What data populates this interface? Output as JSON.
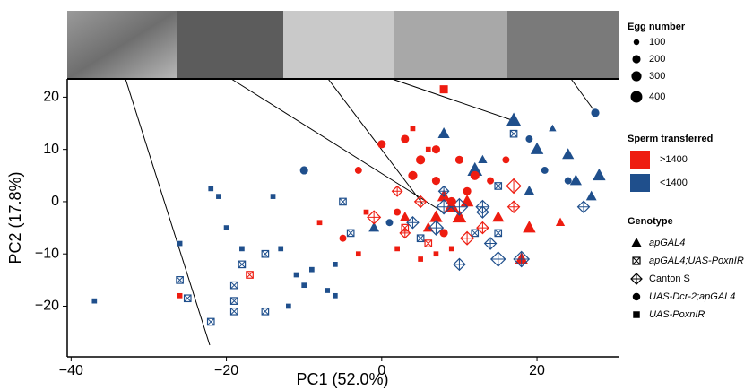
{
  "chart_data": {
    "type": "scatter",
    "xlabel": "PC1 (52.0%)",
    "ylabel": "PC2 (17.8%)",
    "xlim": [
      -40.5,
      30.5
    ],
    "ylim": [
      -29.7,
      23.5
    ],
    "xticks": [
      {
        "value": -40,
        "label": "−40"
      },
      {
        "value": -20,
        "label": "−20"
      },
      0,
      20
    ],
    "yticks": [
      {
        "value": -20,
        "label": "−20"
      },
      {
        "value": -10,
        "label": "−10"
      },
      0,
      10,
      20
    ],
    "size_legend": {
      "title": "Egg number",
      "values": [
        100,
        200,
        300,
        400
      ]
    },
    "color_legend": {
      "title": "Sperm transferred",
      "groups": [
        {
          "label": ">1400",
          "color": "#ee1c10"
        },
        {
          "label": "<1400",
          "color": "#1f4f8c"
        }
      ]
    },
    "genotype_legend_title": "Genotype",
    "series": [
      {
        "name": "apGAL4",
        "shape": "triangle",
        "x": [
          17,
          8,
          20,
          24,
          12,
          28,
          25,
          27,
          19,
          8,
          9,
          7,
          11,
          10,
          19,
          23,
          15,
          18,
          6,
          -1,
          3,
          22,
          13
        ],
        "y": [
          15.5,
          13,
          10,
          9,
          6,
          5,
          4,
          1,
          2,
          1,
          -1,
          -3,
          0,
          -3,
          -5,
          -4,
          -3,
          -11,
          -5,
          -5,
          -3,
          14,
          8
        ],
        "eggs": [
          400,
          250,
          300,
          250,
          400,
          300,
          250,
          200,
          200,
          300,
          400,
          300,
          300,
          350,
          300,
          150,
          250,
          300,
          200,
          200,
          200,
          100,
          150
        ],
        "sperm_group": [
          1,
          1,
          1,
          1,
          1,
          1,
          1,
          1,
          1,
          0,
          0,
          0,
          0,
          0,
          0,
          0,
          0,
          0,
          0,
          1,
          0,
          1,
          1
        ]
      },
      {
        "name": "apGAL4;UAS-PoxnIR",
        "shape": "square-x",
        "x": [
          -22,
          -26,
          -25,
          -19,
          -19,
          -19,
          -15,
          -15,
          -18,
          -17,
          -5,
          -4,
          5,
          12,
          3,
          6,
          15,
          15,
          17
        ],
        "y": [
          -23,
          -15,
          -18.5,
          -16,
          -19,
          -21,
          -21,
          -10,
          -12,
          -14,
          0,
          -6,
          -7,
          -6,
          -5,
          -8,
          -6,
          3,
          13
        ],
        "eggs": [
          150,
          150,
          150,
          150,
          150,
          150,
          150,
          150,
          150,
          150,
          150,
          150,
          150,
          150,
          150,
          150,
          150,
          150,
          150
        ],
        "sperm_group": [
          1,
          1,
          1,
          1,
          1,
          1,
          1,
          1,
          1,
          0,
          1,
          1,
          1,
          1,
          0,
          0,
          1,
          1,
          1
        ]
      },
      {
        "name": "Canton S",
        "shape": "diamond-cross",
        "x": [
          -1,
          7,
          8,
          10,
          4,
          18,
          15,
          10,
          14,
          13,
          17,
          17,
          13,
          26,
          5,
          8,
          13,
          2,
          3,
          11
        ],
        "y": [
          -3,
          -5,
          -1,
          -1,
          -4,
          -11,
          -11,
          -12,
          -8,
          -5,
          3,
          -1,
          -1,
          -1,
          0,
          2,
          -2,
          2,
          -6,
          -7
        ],
        "eggs": [
          250,
          300,
          300,
          400,
          200,
          350,
          300,
          200,
          200,
          200,
          300,
          200,
          250,
          200,
          200,
          150,
          200,
          150,
          150,
          250
        ],
        "sperm_group": [
          0,
          1,
          1,
          1,
          1,
          1,
          1,
          1,
          1,
          0,
          0,
          0,
          1,
          1,
          0,
          1,
          1,
          0,
          0,
          0
        ]
      },
      {
        "name": "UAS-Dcr-2;apGAL4",
        "shape": "circle",
        "x": [
          -10,
          27.5,
          0,
          3,
          7,
          5,
          4,
          7,
          10,
          12,
          -3,
          9,
          11,
          16,
          19,
          24,
          21,
          2,
          -5,
          1,
          14,
          8
        ],
        "y": [
          6,
          17,
          11,
          12,
          10,
          8,
          5,
          4,
          8,
          5,
          6,
          0,
          2,
          8,
          12,
          4,
          6,
          -2,
          -7,
          -4,
          4,
          -6
        ],
        "eggs": [
          200,
          200,
          200,
          200,
          200,
          250,
          250,
          200,
          200,
          250,
          150,
          250,
          200,
          150,
          150,
          150,
          150,
          150,
          150,
          150,
          150,
          200
        ],
        "sperm_group": [
          1,
          1,
          0,
          0,
          0,
          0,
          0,
          0,
          0,
          0,
          0,
          0,
          0,
          0,
          1,
          1,
          1,
          0,
          0,
          1,
          0,
          0
        ]
      },
      {
        "name": "UAS-PoxnIR",
        "shape": "square",
        "x": [
          8,
          -37,
          -26,
          -26,
          -21,
          -20,
          -22,
          -18,
          -14,
          -13,
          -11,
          -10,
          -12,
          -9,
          -8,
          -6,
          -3,
          -2,
          -6,
          -7,
          5,
          7,
          2,
          9,
          6,
          4
        ],
        "y": [
          21.5,
          -19,
          -8,
          -18,
          1,
          -5,
          2.5,
          -9,
          1,
          -9,
          -14,
          -16,
          -20,
          -13,
          -4,
          -12,
          -10,
          -2,
          -18,
          -17,
          -11,
          -10,
          -9,
          -9,
          10,
          14
        ],
        "eggs": [
          250,
          100,
          100,
          100,
          100,
          100,
          100,
          100,
          100,
          100,
          100,
          100,
          100,
          100,
          100,
          100,
          100,
          100,
          100,
          100,
          100,
          100,
          100,
          100,
          100,
          100
        ],
        "sperm_group": [
          0,
          1,
          1,
          0,
          1,
          1,
          1,
          1,
          1,
          1,
          1,
          1,
          1,
          1,
          0,
          1,
          0,
          0,
          1,
          1,
          0,
          0,
          0,
          0,
          0,
          0
        ]
      }
    ]
  }
}
